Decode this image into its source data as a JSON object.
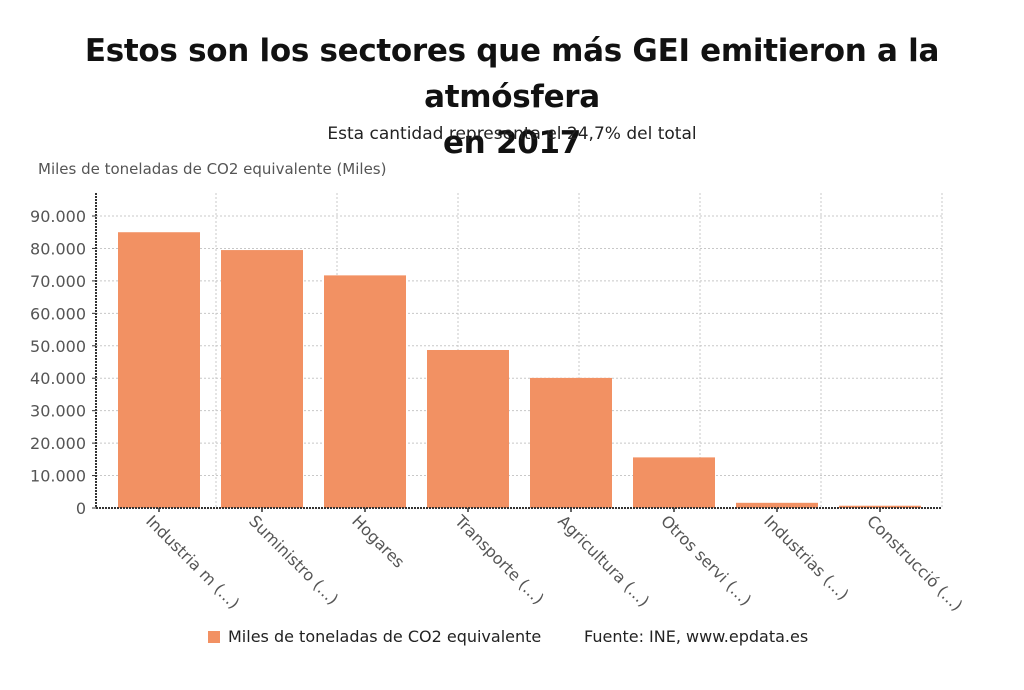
{
  "header": {
    "title": "Estos son los sectores que más GEI emitieron a la atmósfera en 2017",
    "subtitle": "Esta cantidad representa el 24,7% del total"
  },
  "chart_data": {
    "type": "bar",
    "title": "Estos son los sectores que más GEI emitieron a la atmósfera en 2017",
    "subtitle": "Esta cantidad representa el 24,7% del total",
    "ylabel": "Miles de toneladas de CO2 equivalente (Miles)",
    "xlabel": "",
    "categories": [
      "Industria m (...)",
      "Suministro (...)",
      "Hogares",
      "Transporte (...)",
      "Agricultura (...)",
      "Otros servi (...)",
      "Industrias (...)",
      "Construcció (...)"
    ],
    "series": [
      {
        "name": "Miles de toneladas de CO2 equivalente",
        "color": "#F29163",
        "values": [
          85000,
          79500,
          71700,
          48700,
          40100,
          15600,
          1600,
          700
        ]
      }
    ],
    "ylim": [
      0,
      95000
    ],
    "yticks": [
      0,
      10000,
      20000,
      30000,
      40000,
      50000,
      60000,
      70000,
      80000,
      90000
    ],
    "ytick_labels": [
      "0",
      "10.000",
      "20.000",
      "30.000",
      "40.000",
      "50.000",
      "60.000",
      "70.000",
      "80.000",
      "90.000"
    ],
    "grid": true,
    "legend_position": "bottom"
  },
  "legend": {
    "label": "Miles de toneladas de CO2 equivalente",
    "source": "Fuente: INE, www.epdata.es"
  }
}
